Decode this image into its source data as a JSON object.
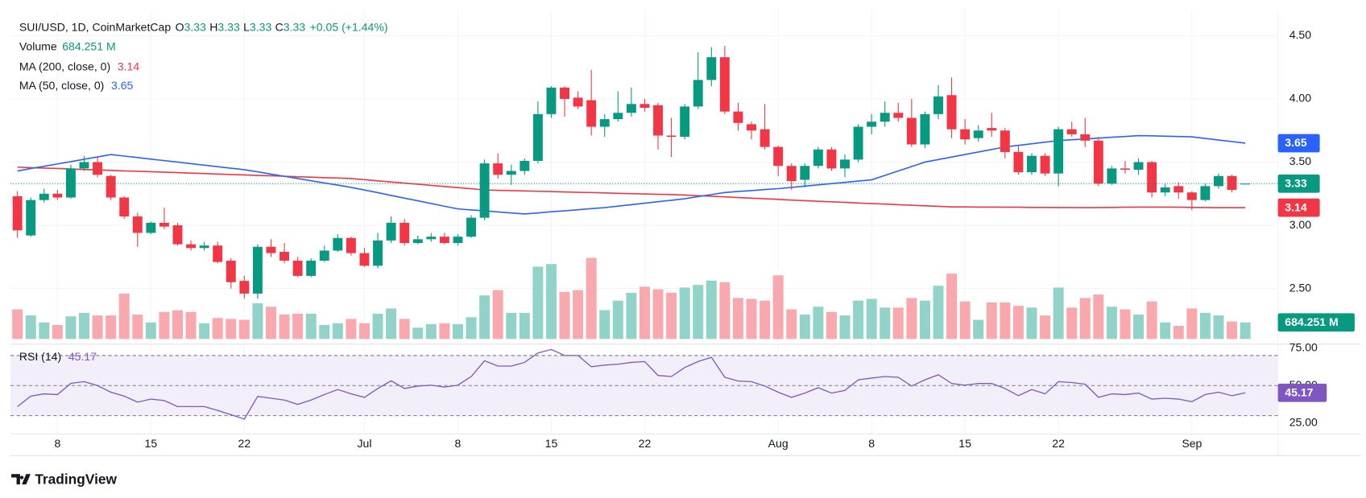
{
  "chart_data": {
    "type": "candlestick",
    "title": "SUI/USD, 1D, CoinMarketCap",
    "ohlc_letters": [
      "O",
      "H",
      "L",
      "C"
    ],
    "change": "+0.05 (+1.44%)",
    "up_color": "#089981",
    "down_color": "#f23645",
    "grid": true,
    "categories": [
      null,
      null,
      null,
      "8",
      null,
      null,
      null,
      null,
      null,
      null,
      "15",
      null,
      null,
      null,
      null,
      null,
      null,
      "22",
      null,
      null,
      null,
      null,
      null,
      null,
      null,
      null,
      "Jul",
      null,
      null,
      null,
      null,
      null,
      null,
      "8",
      null,
      null,
      null,
      null,
      null,
      null,
      "15",
      null,
      null,
      null,
      null,
      null,
      null,
      "22",
      null,
      null,
      null,
      null,
      null,
      null,
      null,
      null,
      null,
      "Aug",
      null,
      null,
      null,
      null,
      null,
      null,
      "8",
      null,
      null,
      null,
      null,
      null,
      null,
      "15",
      null,
      null,
      null,
      null,
      null,
      null,
      "22",
      null,
      null,
      null,
      null,
      null,
      null,
      null,
      null,
      null,
      "Sep",
      null,
      null,
      null,
      null
    ],
    "open": [
      3.23,
      2.92,
      3.2,
      3.25,
      3.22,
      3.45,
      3.5,
      3.39,
      3.22,
      3.07,
      2.94,
      3.02,
      3.0,
      2.85,
      2.82,
      2.84,
      2.72,
      2.56,
      2.46,
      2.83,
      2.79,
      2.72,
      2.6,
      2.72,
      2.8,
      2.9,
      2.78,
      2.68,
      2.88,
      3.02,
      2.86,
      2.89,
      2.91,
      2.86,
      2.91,
      3.06,
      3.49,
      3.4,
      3.43,
      3.51,
      3.88,
      4.09,
      4.01,
      3.99,
      3.78,
      3.84,
      3.89,
      3.96,
      3.95,
      3.71,
      3.7,
      3.94,
      4.15,
      4.33,
      3.9,
      3.8,
      3.76,
      3.62,
      3.47,
      3.36,
      3.47,
      3.6,
      3.45,
      3.52,
      3.78,
      3.82,
      3.89,
      3.85,
      3.64,
      3.88,
      4.03,
      3.76,
      3.69,
      3.77,
      3.75,
      3.58,
      3.42,
      3.55,
      3.41,
      3.76,
      3.72,
      3.67,
      3.33,
      3.45,
      3.44,
      3.5,
      3.26,
      3.31,
      3.26,
      3.2,
      3.31,
      3.39,
      3.33
    ],
    "high": [
      3.27,
      3.22,
      3.29,
      3.28,
      3.48,
      3.55,
      3.54,
      3.4,
      3.23,
      3.1,
      3.03,
      3.14,
      3.02,
      2.88,
      2.87,
      2.87,
      2.74,
      2.6,
      2.85,
      2.89,
      2.86,
      2.75,
      2.74,
      2.84,
      2.93,
      2.91,
      2.82,
      2.94,
      3.07,
      3.05,
      2.92,
      2.94,
      2.94,
      2.93,
      3.08,
      3.52,
      3.57,
      3.48,
      3.53,
      3.98,
      4.1,
      4.1,
      4.06,
      4.23,
      3.88,
      4.06,
      4.09,
      4.0,
      3.97,
      3.85,
      3.96,
      4.37,
      4.41,
      4.42,
      3.97,
      3.82,
      3.96,
      3.63,
      3.49,
      3.49,
      3.62,
      3.62,
      3.56,
      3.8,
      3.88,
      3.98,
      3.97,
      4.0,
      3.9,
      4.11,
      4.17,
      3.84,
      3.79,
      3.89,
      3.77,
      3.63,
      3.57,
      3.57,
      3.78,
      3.82,
      3.85,
      3.7,
      3.47,
      3.51,
      3.53,
      3.51,
      3.33,
      3.34,
      3.27,
      3.33,
      3.41,
      3.4,
      3.33
    ],
    "low": [
      2.9,
      2.91,
      3.18,
      3.2,
      3.21,
      3.43,
      3.38,
      3.2,
      3.05,
      2.83,
      2.93,
      2.97,
      2.84,
      2.8,
      2.8,
      2.7,
      2.5,
      2.42,
      2.42,
      2.75,
      2.7,
      2.59,
      2.59,
      2.71,
      2.79,
      2.76,
      2.67,
      2.66,
      2.86,
      2.84,
      2.85,
      2.87,
      2.85,
      2.84,
      2.9,
      3.04,
      3.37,
      3.32,
      3.4,
      3.49,
      3.85,
      3.86,
      3.92,
      3.71,
      3.7,
      3.82,
      3.86,
      3.9,
      3.6,
      3.54,
      3.68,
      3.92,
      4.1,
      3.88,
      3.75,
      3.68,
      3.6,
      3.39,
      3.28,
      3.3,
      3.45,
      3.43,
      3.38,
      3.5,
      3.72,
      3.78,
      3.82,
      3.62,
      3.61,
      3.84,
      3.69,
      3.64,
      3.66,
      3.7,
      3.53,
      3.4,
      3.4,
      3.39,
      3.31,
      3.7,
      3.62,
      3.31,
      3.32,
      3.41,
      3.4,
      3.22,
      3.23,
      3.21,
      3.12,
      3.19,
      3.29,
      3.26,
      3.33
    ],
    "close": [
      2.96,
      3.2,
      3.25,
      3.22,
      3.45,
      3.5,
      3.4,
      3.22,
      3.07,
      2.94,
      3.02,
      2.99,
      2.85,
      2.82,
      2.84,
      2.71,
      2.55,
      2.46,
      2.83,
      2.78,
      2.72,
      2.6,
      2.72,
      2.8,
      2.9,
      2.78,
      2.68,
      2.88,
      3.02,
      2.86,
      2.89,
      2.91,
      2.86,
      2.91,
      3.06,
      3.49,
      3.4,
      3.43,
      3.51,
      3.88,
      4.09,
      4.0,
      3.94,
      3.78,
      3.84,
      3.89,
      3.96,
      3.93,
      3.71,
      3.7,
      3.94,
      4.15,
      4.33,
      3.9,
      3.81,
      3.75,
      3.62,
      3.47,
      3.35,
      3.47,
      3.6,
      3.45,
      3.52,
      3.78,
      3.82,
      3.89,
      3.85,
      3.64,
      3.88,
      4.02,
      3.76,
      3.68,
      3.75,
      3.75,
      3.58,
      3.42,
      3.55,
      3.41,
      3.76,
      3.72,
      3.67,
      3.33,
      3.45,
      3.44,
      3.5,
      3.26,
      3.3,
      3.26,
      3.2,
      3.31,
      3.39,
      3.28,
      3.33
    ],
    "ylim": [
      2.08,
      4.7
    ],
    "yticks": [
      {
        "value": 2.5,
        "label": "2.50"
      },
      {
        "value": 3,
        "label": "3.00"
      },
      {
        "value": 3.5,
        "label": "3.50"
      },
      {
        "value": 4,
        "label": "4.00"
      },
      {
        "value": 4.5,
        "label": "4.50"
      }
    ],
    "volume": {
      "name": "Volume",
      "label": "684.251 M",
      "up_color": "#92d3c9",
      "down_color": "#f9a9ae",
      "values": [
        1224,
        972,
        684,
        576,
        936,
        1080,
        972,
        972,
        1872,
        1008,
        684,
        1116,
        1188,
        1116,
        648,
        864,
        828,
        792,
        1476,
        1332,
        1008,
        1044,
        1044,
        576,
        648,
        828,
        648,
        1044,
        1260,
        828,
        468,
        612,
        648,
        612,
        900,
        1800,
        2016,
        1080,
        1080,
        2988,
        3096,
        1944,
        2016,
        3348,
        1188,
        1584,
        1908,
        2160,
        2052,
        1908,
        2124,
        2232,
        2412,
        2340,
        1692,
        1656,
        1584,
        2628,
        1224,
        1008,
        1332,
        1116,
        972,
        1584,
        1656,
        1296,
        1296,
        1692,
        1584,
        2196,
        2700,
        1548,
        792,
        1512,
        1512,
        1368,
        1296,
        972,
        2124,
        1296,
        1692,
        1836,
        1332,
        1224,
        1008,
        1548,
        684,
        540,
        1260,
        1080,
        972,
        720,
        684.251
      ]
    },
    "series": [
      {
        "name": "MA (200, close, 0)",
        "color": "#f23645",
        "values": [
          3.46,
          3.456,
          3.453,
          3.449,
          3.446,
          3.442,
          3.438,
          3.435,
          3.431,
          3.428,
          3.424,
          3.42,
          3.417,
          3.413,
          3.41,
          3.406,
          3.402,
          3.399,
          3.395,
          3.392,
          3.388,
          3.384,
          3.381,
          3.377,
          3.374,
          3.37,
          3.361,
          3.352,
          3.343,
          3.334,
          3.325,
          3.316,
          3.307,
          3.298,
          3.289,
          3.28,
          3.277,
          3.275,
          3.272,
          3.269,
          3.267,
          3.264,
          3.261,
          3.259,
          3.256,
          3.253,
          3.251,
          3.248,
          3.245,
          3.243,
          3.24,
          3.235,
          3.23,
          3.225,
          3.22,
          3.215,
          3.21,
          3.205,
          3.2,
          3.195,
          3.19,
          3.186,
          3.181,
          3.177,
          3.172,
          3.168,
          3.163,
          3.159,
          3.154,
          3.15,
          3.145,
          3.145,
          3.144,
          3.144,
          3.143,
          3.143,
          3.142,
          3.142,
          3.141,
          3.141,
          3.14,
          3.141,
          3.142,
          3.143,
          3.144,
          3.144,
          3.144,
          3.143,
          3.142,
          3.141,
          3.14,
          3.14,
          3.14
        ]
      },
      {
        "name": "MA (50, close, 0)",
        "color": "#2962ff",
        "values": [
          3.43,
          3.449,
          3.467,
          3.486,
          3.504,
          3.523,
          3.541,
          3.56,
          3.548,
          3.536,
          3.524,
          3.512,
          3.5,
          3.488,
          3.476,
          3.464,
          3.452,
          3.44,
          3.423,
          3.405,
          3.388,
          3.37,
          3.353,
          3.335,
          3.318,
          3.3,
          3.279,
          3.258,
          3.236,
          3.215,
          3.194,
          3.173,
          3.151,
          3.13,
          3.122,
          3.114,
          3.106,
          3.098,
          3.09,
          3.098,
          3.107,
          3.115,
          3.123,
          3.132,
          3.14,
          3.152,
          3.163,
          3.175,
          3.187,
          3.198,
          3.21,
          3.227,
          3.243,
          3.26,
          3.268,
          3.275,
          3.283,
          3.29,
          3.3,
          3.31,
          3.32,
          3.33,
          3.34,
          3.35,
          3.36,
          3.395,
          3.43,
          3.465,
          3.5,
          3.52,
          3.54,
          3.56,
          3.58,
          3.6,
          3.62,
          3.633,
          3.645,
          3.658,
          3.67,
          3.677,
          3.683,
          3.69,
          3.697,
          3.703,
          3.71,
          3.708,
          3.705,
          3.703,
          3.7,
          3.688,
          3.675,
          3.663,
          3.65
        ]
      }
    ],
    "rsi": {
      "name": "RSI (14)",
      "color": "#7e57c2",
      "band_fill": "#f2eefa",
      "ylim": [
        18.4,
        75.8
      ],
      "yticks": [
        {
          "value": 25,
          "label": "25.00"
        },
        {
          "value": 50,
          "label": "50.00"
        },
        {
          "value": 75,
          "label": "75.00"
        }
      ],
      "bands": [
        70,
        50,
        30
      ],
      "values": [
        36,
        43,
        44.5,
        44,
        51.5,
        52.6,
        50,
        45.6,
        43,
        39,
        41,
        40,
        36,
        36,
        36,
        33.5,
        30.6,
        27.7,
        42.8,
        41.6,
        40.4,
        37.5,
        40.4,
        44,
        47.4,
        44.5,
        42.2,
        48,
        53.2,
        48,
        49.7,
        50.3,
        49,
        50.3,
        56,
        66.5,
        63,
        63,
        65.4,
        71.7,
        74,
        70,
        70,
        62.5,
        63.6,
        64.2,
        65.4,
        66,
        56.7,
        56,
        62,
        66,
        68.8,
        55.5,
        53,
        52.6,
        49.7,
        45.6,
        42.2,
        45,
        48.6,
        45,
        46.8,
        53.8,
        55,
        56,
        55.5,
        49.7,
        53.8,
        57.2,
        51.4,
        50.3,
        51.4,
        51.4,
        48,
        43.3,
        47.4,
        44.5,
        52.6,
        52,
        50.9,
        42.2,
        44.5,
        44,
        45,
        41,
        41.6,
        41,
        39.3,
        44,
        45.6,
        43.3,
        45.17
      ]
    }
  },
  "footer": "TradingView"
}
